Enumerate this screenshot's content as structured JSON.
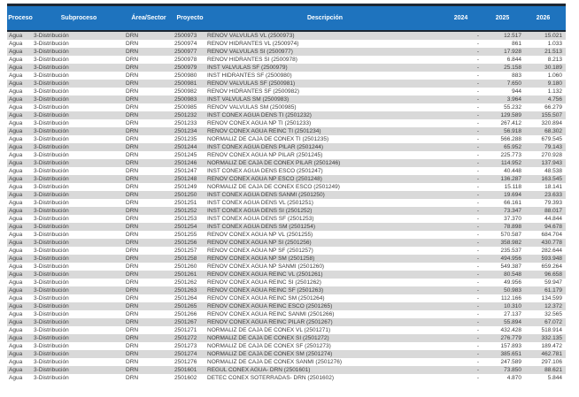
{
  "colors": {
    "header_bg": "#1E73BE",
    "header_text": "#FFFFFF",
    "stripe": "#D9D9D9",
    "border_dark": "#1C2733"
  },
  "table": {
    "columns": [
      "Proceso",
      "Subproceso",
      "Área/Sector",
      "Proyecto",
      "Descripción",
      "2024",
      "2025",
      "2026"
    ],
    "rows": [
      [
        "Agua",
        "3-Distribución",
        "DRN",
        "2500973",
        "RENOV VALVULAS VL (2500973)",
        "-",
        "12.517",
        "15.021"
      ],
      [
        "Agua",
        "3-Distribución",
        "DRN",
        "2500974",
        "RENOV HIDRANTES VL (2500974)",
        "-",
        "861",
        "1.033"
      ],
      [
        "Agua",
        "3-Distribución",
        "DRN",
        "2500977",
        "RENOV VALVULAS SI (2500977)",
        "-",
        "17.928",
        "21.513"
      ],
      [
        "Agua",
        "3-Distribución",
        "DRN",
        "2500978",
        "RENOV HIDRANTES SI (2500978)",
        "-",
        "6.844",
        "8.213"
      ],
      [
        "Agua",
        "3-Distribución",
        "DRN",
        "2500979",
        "INST VALVULAS SF (2500979)",
        "-",
        "25.158",
        "30.189"
      ],
      [
        "Agua",
        "3-Distribución",
        "DRN",
        "2500980",
        "INST HIDRANTES SF (2500980)",
        "-",
        "883",
        "1.060"
      ],
      [
        "Agua",
        "3-Distribución",
        "DRN",
        "2500981",
        "RENOV VALVULAS SF (2500981)",
        "-",
        "7.650",
        "9.180"
      ],
      [
        "Agua",
        "3-Distribución",
        "DRN",
        "2500982",
        "RENOV HIDRANTES SF (2500982)",
        "-",
        "944",
        "1.132"
      ],
      [
        "Agua",
        "3-Distribución",
        "DRN",
        "2500983",
        "INST VALVULAS SM (2500983)",
        "-",
        "3.964",
        "4.756"
      ],
      [
        "Agua",
        "3-Distribución",
        "DRN",
        "2500985",
        "RENOV VALVULAS SM (2500985)",
        "-",
        "55.232",
        "66.279"
      ],
      [
        "Agua",
        "3-Distribución",
        "DRN",
        "2501232",
        "INST CONEX AGUA DENS TI (2501232)",
        "-",
        "129.589",
        "155.507"
      ],
      [
        "Agua",
        "3-Distribución",
        "DRN",
        "2501233",
        "RENOV CONEX AGUA NP TI (2501233)",
        "-",
        "267.412",
        "320.894"
      ],
      [
        "Agua",
        "3-Distribución",
        "DRN",
        "2501234",
        "RENOV CONEX AGUA REINC TI (2501234)",
        "-",
        "56.918",
        "68.302"
      ],
      [
        "Agua",
        "3-Distribución",
        "DRN",
        "2501235",
        "NORMALIZ DE CAJA DE CONEX TI (2501235)",
        "-",
        "566.288",
        "679.545"
      ],
      [
        "Agua",
        "3-Distribución",
        "DRN",
        "2501244",
        "INST CONEX AGUA DENS PILAR (2501244)",
        "-",
        "65.952",
        "79.143"
      ],
      [
        "Agua",
        "3-Distribución",
        "DRN",
        "2501245",
        "RENOV CONEX AGUA NP PILAR (2501245)",
        "-",
        "225.773",
        "270.928"
      ],
      [
        "Agua",
        "3-Distribución",
        "DRN",
        "2501246",
        "NORMALIZ DE CAJA DE CONEX PILAR (2501246)",
        "-",
        "114.952",
        "137.943"
      ],
      [
        "Agua",
        "3-Distribución",
        "DRN",
        "2501247",
        "INST CONEX AGUA DENS ESCO (2501247)",
        "-",
        "40.448",
        "48.538"
      ],
      [
        "Agua",
        "3-Distribución",
        "DRN",
        "2501248",
        "RENOV CONEX AGUA NP ESCO (2501248)",
        "-",
        "136.287",
        "163.545"
      ],
      [
        "Agua",
        "3-Distribución",
        "DRN",
        "2501249",
        "NORMALIZ DE CAJA DE CONEX ESCO (2501249)",
        "-",
        "15.118",
        "18.141"
      ],
      [
        "Agua",
        "3-Distribución",
        "DRN",
        "2501250",
        "INST CONEX AGUA DENS SANMI (2501250)",
        "-",
        "19.694",
        "23.633"
      ],
      [
        "Agua",
        "3-Distribución",
        "DRN",
        "2501251",
        "INST CONEX AGUA DENS VL (2501251)",
        "-",
        "66.161",
        "79.393"
      ],
      [
        "Agua",
        "3-Distribución",
        "DRN",
        "2501252",
        "INST CONEX AGUA DENS SI (2501252)",
        "-",
        "73.347",
        "88.017"
      ],
      [
        "Agua",
        "3-Distribución",
        "DRN",
        "2501253",
        "INST CONEX AGUA DENS SF (2501253)",
        "-",
        "37.370",
        "44.844"
      ],
      [
        "Agua",
        "3-Distribución",
        "DRN",
        "2501254",
        "INST CONEX AGUA DENS SM (2501254)",
        "-",
        "78.898",
        "94.678"
      ],
      [
        "Agua",
        "3-Distribución",
        "DRN",
        "2501255",
        "RENOV CONEX AGUA NP VL (2501255)",
        "-",
        "570.587",
        "684.704"
      ],
      [
        "Agua",
        "3-Distribución",
        "DRN",
        "2501256",
        "RENOV CONEX AGUA NP SI (2501256)",
        "-",
        "358.982",
        "430.778"
      ],
      [
        "Agua",
        "3-Distribución",
        "DRN",
        "2501257",
        "RENOV CONEX AGUA NP SF (2501257)",
        "-",
        "235.537",
        "282.644"
      ],
      [
        "Agua",
        "3-Distribución",
        "DRN",
        "2501258",
        "RENOV CONEX AGUA NP SM (2501258)",
        "-",
        "494.956",
        "593.948"
      ],
      [
        "Agua",
        "3-Distribución",
        "DRN",
        "2501260",
        "RENOV CONEX AGUA NP SANMI (2501260)",
        "-",
        "549.387",
        "659.264"
      ],
      [
        "Agua",
        "3-Distribución",
        "DRN",
        "2501261",
        "RENOV CONEX AGUA REINC VL (2501261)",
        "-",
        "80.548",
        "96.658"
      ],
      [
        "Agua",
        "3-Distribución",
        "DRN",
        "2501262",
        "RENOV CONEX AGUA REINC SI (2501262)",
        "-",
        "49.956",
        "59.947"
      ],
      [
        "Agua",
        "3-Distribución",
        "DRN",
        "2501263",
        "RENOV CONEX AGUA REINC SF (2501263)",
        "-",
        "50.983",
        "61.179"
      ],
      [
        "Agua",
        "3-Distribución",
        "DRN",
        "2501264",
        "RENOV CONEX AGUA REINC SM (2501264)",
        "-",
        "112.166",
        "134.599"
      ],
      [
        "Agua",
        "3-Distribución",
        "DRN",
        "2501265",
        "RENOV CONEX AGUA REINC ESCO (2501265)",
        "-",
        "10.310",
        "12.372"
      ],
      [
        "Agua",
        "3-Distribución",
        "DRN",
        "2501266",
        "RENOV CONEX AGUA REINC SANMI (2501266)",
        "-",
        "27.137",
        "32.565"
      ],
      [
        "Agua",
        "3-Distribución",
        "DRN",
        "2501267",
        "RENOV CONEX AGUA REINC PILAR (2501267)",
        "-",
        "55.894",
        "67.072"
      ],
      [
        "Agua",
        "3-Distribución",
        "DRN",
        "2501271",
        "NORMALIZ DE CAJA DE CONEX VL (2501271)",
        "-",
        "432.428",
        "518.914"
      ],
      [
        "Agua",
        "3-Distribución",
        "DRN",
        "2501272",
        "NORMALIZ DE CAJA DE CONEX SI (2501272)",
        "-",
        "276.779",
        "332.135"
      ],
      [
        "Agua",
        "3-Distribución",
        "DRN",
        "2501273",
        "NORMALIZ DE CAJA DE CONEX SF (2501273)",
        "-",
        "157.893",
        "189.472"
      ],
      [
        "Agua",
        "3-Distribución",
        "DRN",
        "2501274",
        "NORMALIZ DE CAJA DE CONEX SM (2501274)",
        "-",
        "385.651",
        "462.781"
      ],
      [
        "Agua",
        "3-Distribución",
        "DRN",
        "2501276",
        "NORMALIZ DE CAJA DE CONEX SANMI (2501276)",
        "-",
        "247.589",
        "297.106"
      ],
      [
        "Agua",
        "3-Distribución",
        "DRN",
        "2501601",
        "REGUL CONEX AGUA- DRN (2501601)",
        "-",
        "73.850",
        "88.621"
      ],
      [
        "Agua",
        "3-Distribución",
        "DRN",
        "2501602",
        "DETEC CONEX SOTERRADAS- DRN (2501602)",
        "-",
        "4.870",
        "5.844"
      ]
    ]
  }
}
